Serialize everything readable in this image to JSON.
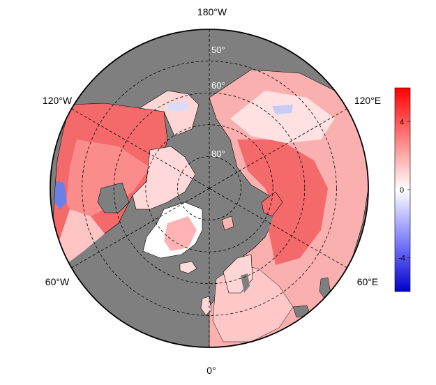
{
  "map": {
    "projection": "north-polar-stereographic",
    "land_color": "#7f7f7f",
    "grid_style": "dashed",
    "longitude_labels": [
      {
        "label": "180°W",
        "lon": 180
      },
      {
        "label": "120°W",
        "lon": -120
      },
      {
        "label": "120°E",
        "lon": 120
      },
      {
        "label": "60°W",
        "lon": -60
      },
      {
        "label": "60°E",
        "lon": 60
      },
      {
        "label": "0°",
        "lon": 0
      }
    ],
    "latitude_labels": [
      {
        "label": "50°",
        "lat": 50
      },
      {
        "label": "60°",
        "lat": 60
      },
      {
        "label": "80°",
        "lat": 80
      }
    ],
    "latitude_circles": [
      50,
      60,
      70,
      80
    ],
    "meridians": [
      0,
      60,
      120,
      180,
      240,
      300
    ]
  },
  "colorbar": {
    "min": -6,
    "max": 6,
    "ticks": [
      {
        "value": 4,
        "label": "4"
      },
      {
        "value": 0,
        "label": "0"
      },
      {
        "value": -4,
        "label": "-4"
      }
    ],
    "colors": {
      "low": "#0000cc",
      "mid": "#ffffff",
      "high": "#ff0000"
    }
  }
}
